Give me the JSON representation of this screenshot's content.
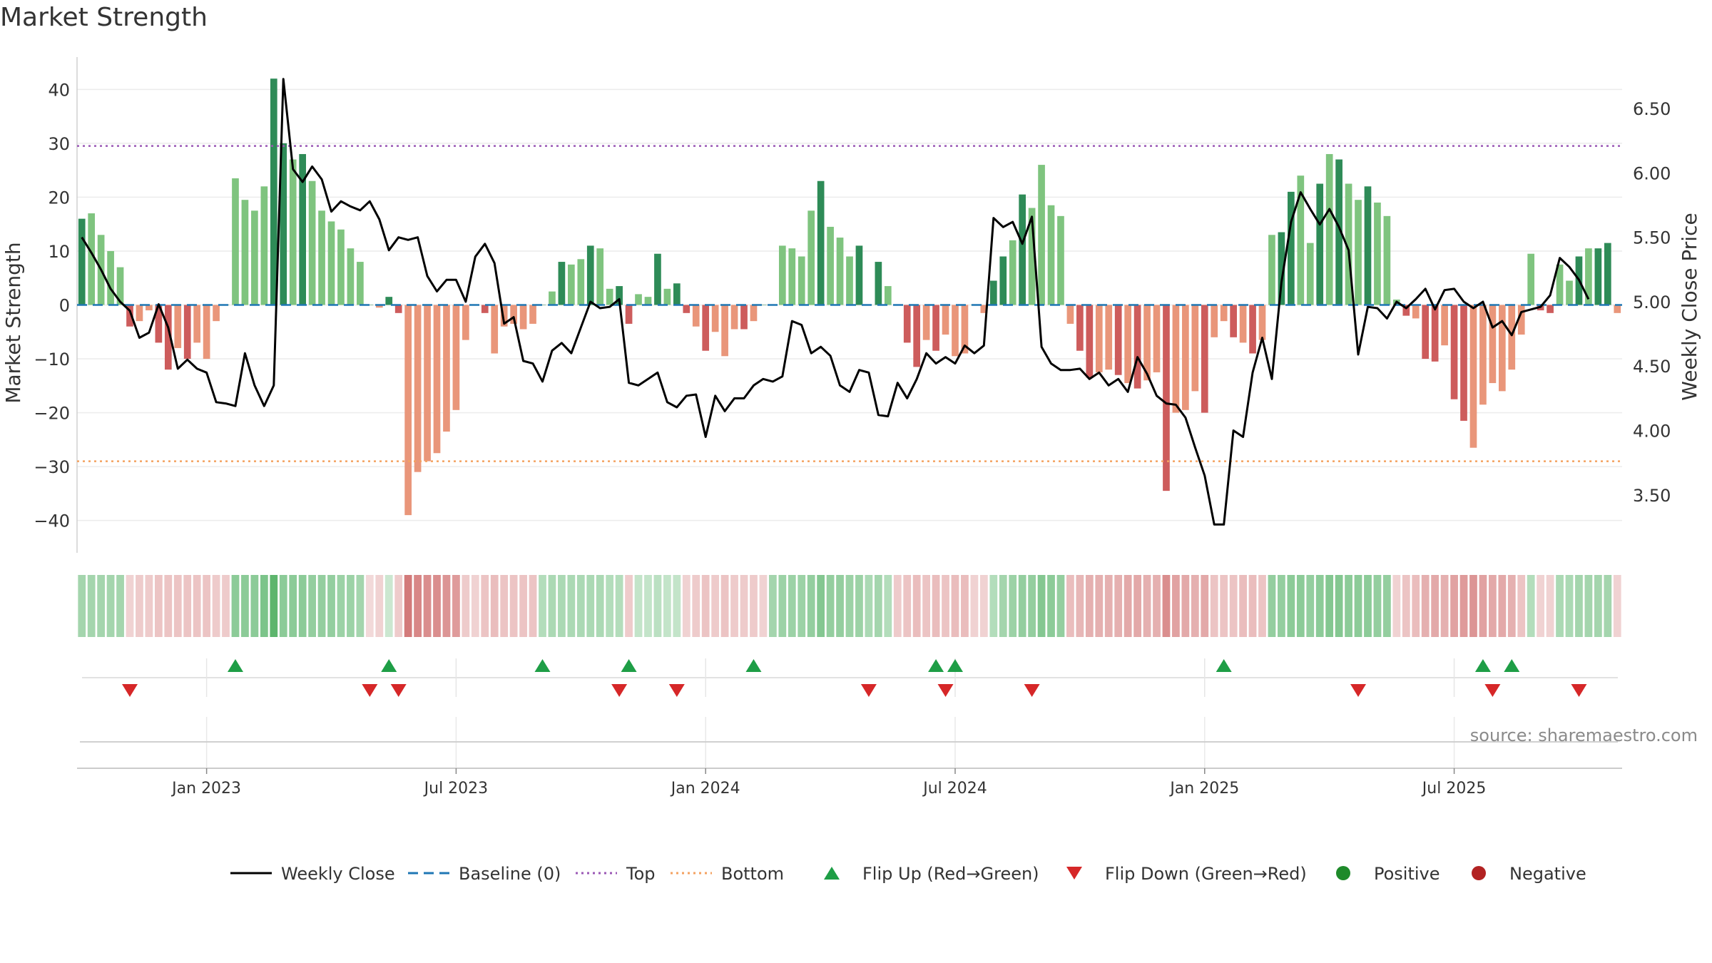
{
  "title": "Market Strength",
  "source": "source: sharemaestro.com",
  "colors": {
    "pos_strong": "#2e8b57",
    "pos_light": "#7fc47f",
    "neg_strong": "#cd5c5c",
    "neg_light": "#e9967a",
    "close_line": "#000000",
    "baseline": "#1f77b4",
    "top": "#9b59b6",
    "bottom": "#f4a261",
    "flip_up": "#1e9e46",
    "flip_down": "#d62728",
    "positive": "#1e8a2a",
    "negative": "#b22222",
    "grid": "#ececec",
    "source_text": "#8a8a8a"
  },
  "chart_data": {
    "type": "bar",
    "start_week": "2022-10-03",
    "title": "Market Strength",
    "ylabel_left": "Market Strength",
    "ylabel_right": "Weekly Close Price",
    "ylim_left": [
      -46,
      46
    ],
    "ylim_right": [
      3.05,
      6.9
    ],
    "left_ticks": [
      40,
      30,
      20,
      10,
      0,
      -10,
      -20,
      -30,
      -40
    ],
    "left_tick_labels": [
      "40",
      "30",
      "20",
      "10",
      "0",
      "−10",
      "−20",
      "−30",
      "−40"
    ],
    "right_ticks": [
      6.5,
      6.0,
      5.5,
      5.0,
      4.5,
      4.0,
      3.5
    ],
    "right_tick_labels": [
      "6.50",
      "6.00",
      "5.50",
      "5.00",
      "4.50",
      "4.00",
      "3.50"
    ],
    "top_level": 29.5,
    "bottom_level": -29,
    "x_ticks": [
      {
        "week": 13,
        "label": "Jan 2023"
      },
      {
        "week": 39,
        "label": "Jul 2023"
      },
      {
        "week": 65,
        "label": "Jan 2024"
      },
      {
        "week": 91,
        "label": "Jul 2024"
      },
      {
        "week": 117,
        "label": "Jan 2025"
      },
      {
        "week": 143,
        "label": "Jul 2025"
      }
    ],
    "strength": [
      16,
      17,
      13,
      10,
      7,
      -4,
      -3,
      -1,
      -7,
      -12,
      -8,
      -10,
      -7,
      -10,
      -3,
      0,
      23.5,
      19.5,
      17.5,
      22,
      42,
      30,
      27,
      28,
      23,
      17.5,
      15.5,
      14,
      10.5,
      8,
      0,
      -0.5,
      1.5,
      -1.5,
      -39,
      -31,
      -29,
      -27.5,
      -23.5,
      -19.5,
      -6.5,
      0,
      -1.5,
      -9,
      -4,
      -3.5,
      -4.5,
      -3.5,
      0,
      2.5,
      8,
      7.5,
      8.5,
      11,
      10.5,
      3,
      3.5,
      -3.5,
      2,
      1.5,
      9.5,
      3,
      4,
      -1.5,
      -4,
      -8.5,
      -5,
      -9.5,
      -4.5,
      -4.5,
      -3,
      0,
      0,
      11,
      10.5,
      9,
      17.5,
      23,
      14.5,
      12.5,
      9,
      11,
      0,
      8,
      3.5,
      0,
      -7,
      -11.5,
      -6.5,
      -8.5,
      -5.5,
      -9.5,
      -9,
      0,
      -1.5,
      4.5,
      9,
      12,
      20.5,
      18,
      26,
      18.5,
      16.5,
      -3.5,
      -8.5,
      -13.5,
      -12.5,
      -12,
      -13,
      -14.5,
      -15.5,
      -14,
      -12.5,
      -34.5,
      -20,
      -19.5,
      -16,
      -20,
      -6,
      -3,
      -6,
      -7,
      -9,
      -6.5,
      13,
      13.5,
      21,
      24,
      11.5,
      22.5,
      28,
      27,
      22.5,
      19.5,
      22,
      19,
      16.5,
      1,
      -2,
      -2.5,
      -10,
      -10.5,
      -7.5,
      -17.5,
      -21.5,
      -26.5,
      -18.5,
      -14.5,
      -16,
      -12,
      -5.5,
      9.5,
      -1,
      -1.5,
      7.5,
      4.5,
      9,
      10.5,
      10.5,
      11.5,
      -1.5
    ],
    "weekly_close": [
      5.5,
      5.38,
      5.25,
      5.1,
      5.0,
      4.93,
      4.72,
      4.76,
      4.98,
      4.8,
      4.48,
      4.55,
      4.48,
      4.45,
      4.22,
      4.21,
      4.19,
      4.6,
      4.35,
      4.19,
      4.35,
      6.73,
      6.03,
      5.93,
      6.05,
      5.95,
      5.7,
      5.78,
      5.74,
      5.71,
      5.78,
      5.64,
      5.4,
      5.5,
      5.48,
      5.5,
      5.2,
      5.08,
      5.17,
      5.17,
      5.0,
      5.35,
      5.45,
      5.3,
      4.83,
      4.88,
      4.54,
      4.52,
      4.38,
      4.62,
      4.68,
      4.6,
      4.8,
      5.0,
      4.95,
      4.96,
      5.02,
      4.37,
      4.35,
      4.4,
      4.45,
      4.22,
      4.18,
      4.27,
      4.28,
      3.95,
      4.27,
      4.15,
      4.25,
      4.25,
      4.35,
      4.4,
      4.38,
      4.42,
      4.85,
      4.82,
      4.6,
      4.65,
      4.58,
      4.35,
      4.3,
      4.47,
      4.45,
      4.12,
      4.11,
      4.37,
      4.25,
      4.4,
      4.6,
      4.52,
      4.57,
      4.52,
      4.66,
      4.6,
      4.66,
      5.65,
      5.58,
      5.62,
      5.45,
      5.66,
      4.65,
      4.52,
      4.47,
      4.47,
      4.48,
      4.4,
      4.45,
      4.35,
      4.4,
      4.3,
      4.57,
      4.44,
      4.27,
      4.21,
      4.2,
      4.1,
      3.87,
      3.65,
      3.27,
      3.27,
      4.0,
      3.95,
      4.45,
      4.72,
      4.4,
      5.15,
      5.62,
      5.85,
      5.72,
      5.6,
      5.72,
      5.58,
      5.4,
      4.59,
      4.96,
      4.95,
      4.87,
      5.0,
      4.95,
      5.02,
      5.1,
      4.94,
      5.09,
      5.1,
      5.0,
      4.95,
      5.0,
      4.8,
      4.85,
      4.74,
      4.92,
      4.94,
      4.96,
      5.05,
      5.34,
      5.27,
      5.17,
      5.02
    ],
    "heat": [
      0.45,
      0.45,
      0.45,
      0.45,
      0.45,
      -0.2,
      -0.25,
      -0.25,
      -0.3,
      -0.3,
      -0.3,
      -0.3,
      -0.3,
      -0.3,
      -0.25,
      -0.25,
      0.6,
      0.6,
      0.6,
      0.7,
      0.9,
      0.6,
      0.6,
      0.6,
      0.55,
      0.55,
      0.55,
      0.5,
      0.5,
      0.45,
      -0.15,
      -0.2,
      0.2,
      -0.25,
      -0.85,
      -0.75,
      -0.7,
      -0.7,
      -0.65,
      -0.6,
      -0.25,
      -0.2,
      -0.3,
      -0.35,
      -0.3,
      -0.3,
      -0.3,
      -0.3,
      0.35,
      0.4,
      0.4,
      0.4,
      0.4,
      0.4,
      0.4,
      0.35,
      0.35,
      -0.25,
      0.25,
      0.25,
      0.3,
      0.25,
      0.25,
      -0.2,
      -0.25,
      -0.3,
      -0.25,
      -0.3,
      -0.25,
      -0.25,
      -0.25,
      -0.2,
      0.45,
      0.5,
      0.5,
      0.5,
      0.55,
      0.65,
      0.55,
      0.55,
      0.5,
      0.5,
      0.4,
      0.45,
      0.35,
      -0.25,
      -0.3,
      -0.35,
      -0.3,
      -0.35,
      -0.3,
      -0.35,
      -0.35,
      -0.2,
      -0.2,
      0.35,
      0.45,
      0.5,
      0.55,
      0.55,
      0.65,
      0.6,
      0.55,
      -0.35,
      -0.4,
      -0.45,
      -0.45,
      -0.45,
      -0.45,
      -0.5,
      -0.5,
      -0.45,
      -0.45,
      -0.7,
      -0.55,
      -0.5,
      -0.45,
      -0.5,
      -0.3,
      -0.3,
      -0.3,
      -0.35,
      -0.35,
      -0.3,
      0.55,
      0.55,
      0.6,
      0.6,
      0.55,
      0.6,
      0.65,
      0.65,
      0.6,
      0.6,
      0.6,
      0.55,
      0.55,
      -0.2,
      -0.3,
      -0.35,
      -0.45,
      -0.5,
      -0.45,
      -0.55,
      -0.6,
      -0.65,
      -0.55,
      -0.5,
      -0.5,
      -0.45,
      -0.3,
      0.35,
      -0.2,
      -0.2,
      0.4,
      0.4,
      0.45,
      0.45,
      0.45,
      0.45,
      -0.2
    ],
    "flip_up": [
      16,
      32,
      48,
      57,
      70,
      89,
      91,
      119,
      146,
      149
    ],
    "flip_down": [
      5,
      30,
      33,
      56,
      62,
      82,
      90,
      99,
      133,
      147,
      156
    ]
  },
  "legend": {
    "items": [
      {
        "key": "close",
        "label": "Weekly Close"
      },
      {
        "key": "baseline",
        "label": "Baseline (0)"
      },
      {
        "key": "top",
        "label": "Top"
      },
      {
        "key": "bottom",
        "label": "Bottom"
      },
      {
        "key": "flip_up",
        "label": "Flip Up (Red→Green)"
      },
      {
        "key": "flip_down",
        "label": "Flip Down (Green→Red)"
      },
      {
        "key": "positive",
        "label": "Positive"
      },
      {
        "key": "negative",
        "label": "Negative"
      }
    ]
  }
}
